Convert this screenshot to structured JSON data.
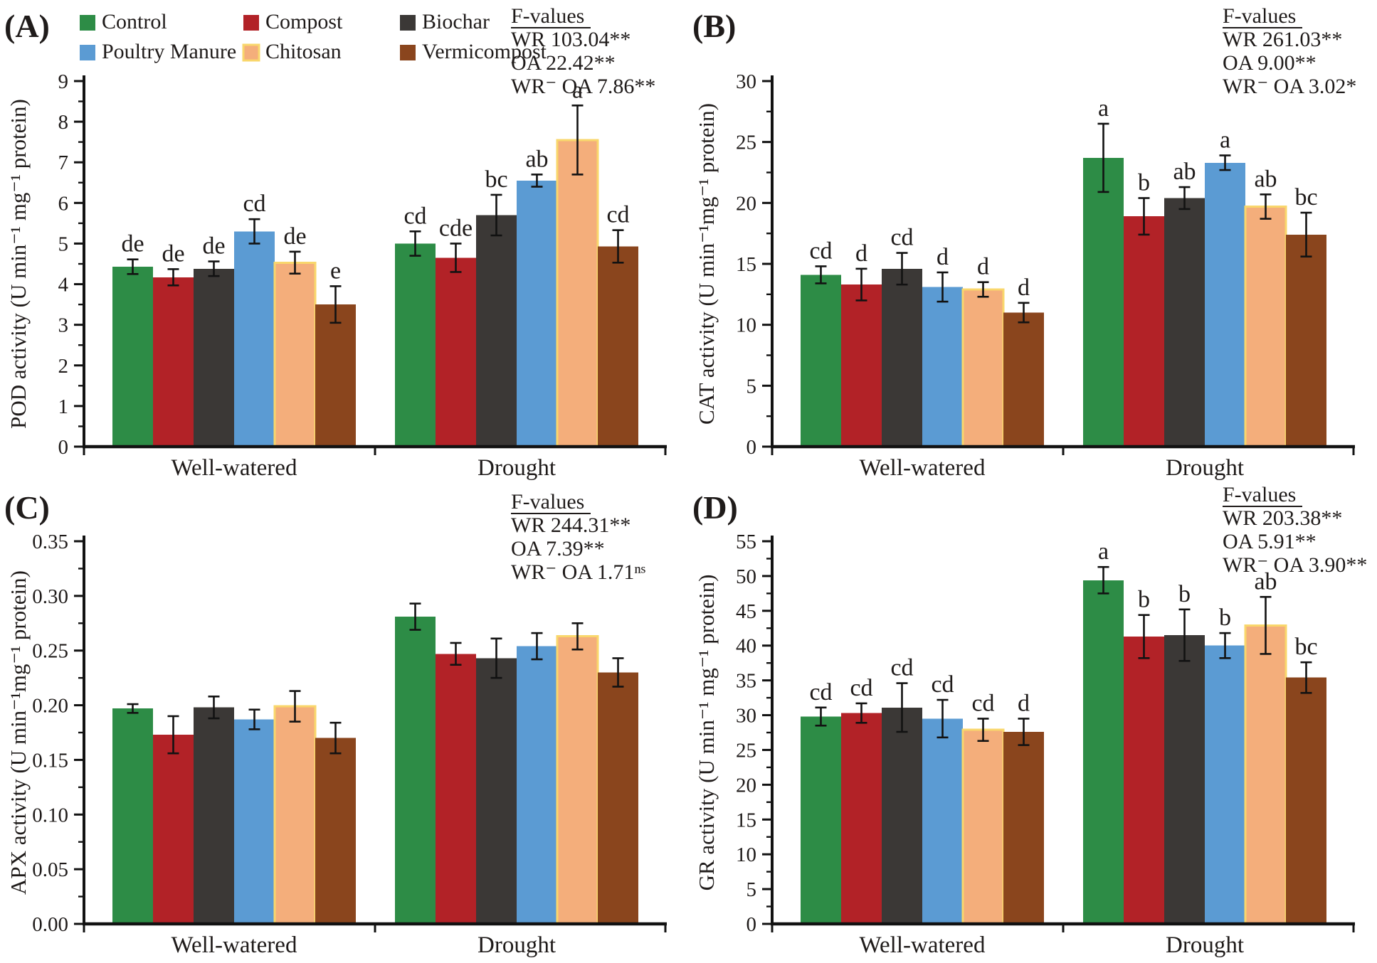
{
  "figure": {
    "panels": [
      "(A)",
      "(B)",
      "(C)",
      "(D)"
    ],
    "legend": [
      {
        "label": "Control",
        "color": "#2d8c46"
      },
      {
        "label": "Compost",
        "color": "#b22227"
      },
      {
        "label": "Biochar",
        "color": "#3b3836"
      },
      {
        "label": "Poultry Manure",
        "color": "#5b9bd3"
      },
      {
        "label": "Chitosan",
        "color": "#f4ae7b",
        "border": "#f9d76c"
      },
      {
        "label": "Vermicompost",
        "color": "#8a451d"
      }
    ],
    "groups": [
      "Well-watered",
      "Drought"
    ],
    "text_color": "#1f1b1a"
  },
  "chart_data": [
    {
      "type": "bar",
      "panel": "(A)",
      "ylabel": "POD activity (U min⁻¹ mg⁻¹ protein)",
      "ylim": [
        0,
        9
      ],
      "ytick_step": 1,
      "ytick_decimals": 0,
      "grid": false,
      "legend_position": "top-left",
      "categories": [
        "Well-watered",
        "Drought"
      ],
      "series": [
        {
          "name": "Control",
          "values": [
            4.43,
            5.0
          ],
          "errors": [
            0.18,
            0.3
          ],
          "letters": [
            "de",
            "cd"
          ]
        },
        {
          "name": "Compost",
          "values": [
            4.17,
            4.65
          ],
          "errors": [
            0.2,
            0.35
          ],
          "letters": [
            "de",
            "cde"
          ]
        },
        {
          "name": "Biochar",
          "values": [
            4.38,
            5.7
          ],
          "errors": [
            0.18,
            0.5
          ],
          "letters": [
            "de",
            "bc"
          ]
        },
        {
          "name": "Poultry Manure",
          "values": [
            5.3,
            6.55
          ],
          "errors": [
            0.3,
            0.15
          ],
          "letters": [
            "cd",
            "ab"
          ]
        },
        {
          "name": "Chitosan",
          "values": [
            4.53,
            7.55
          ],
          "errors": [
            0.27,
            0.85
          ],
          "letters": [
            "de",
            "a"
          ]
        },
        {
          "name": "Vermicompost",
          "values": [
            3.5,
            4.93
          ],
          "errors": [
            0.45,
            0.4
          ],
          "letters": [
            "e",
            "cd"
          ]
        }
      ],
      "f_values": {
        "title": "F-values",
        "lines": [
          "WR 103.04**",
          "OA 22.42**",
          "WR⁻ OA 7.86**"
        ]
      }
    },
    {
      "type": "bar",
      "panel": "(B)",
      "ylabel": "CAT  activity (U min⁻¹mg⁻¹ protein)",
      "ylim": [
        0,
        30
      ],
      "ytick_step": 5,
      "ytick_decimals": 0,
      "grid": false,
      "categories": [
        "Well-watered",
        "Drought"
      ],
      "series": [
        {
          "name": "Control",
          "values": [
            14.1,
            23.7
          ],
          "errors": [
            0.7,
            2.8
          ],
          "letters": [
            "cd",
            "a"
          ]
        },
        {
          "name": "Compost",
          "values": [
            13.3,
            18.9
          ],
          "errors": [
            1.3,
            1.5
          ],
          "letters": [
            "d",
            "b"
          ]
        },
        {
          "name": "Biochar",
          "values": [
            14.6,
            20.4
          ],
          "errors": [
            1.3,
            0.9
          ],
          "letters": [
            "cd",
            "ab"
          ]
        },
        {
          "name": "Poultry Manure",
          "values": [
            13.1,
            23.3
          ],
          "errors": [
            1.2,
            0.6
          ],
          "letters": [
            "d",
            "a"
          ]
        },
        {
          "name": "Chitosan",
          "values": [
            12.9,
            19.7
          ],
          "errors": [
            0.6,
            1.0
          ],
          "letters": [
            "d",
            "ab"
          ]
        },
        {
          "name": "Vermicompost",
          "values": [
            11.0,
            17.4
          ],
          "errors": [
            0.8,
            1.8
          ],
          "letters": [
            "d",
            "bc"
          ]
        }
      ],
      "f_values": {
        "title": "F-values",
        "lines": [
          "WR 261.03**",
          "OA 9.00**",
          "WR⁻ OA 3.02*"
        ]
      }
    },
    {
      "type": "bar",
      "panel": "(C)",
      "ylabel": "APX  activity (U min⁻¹mg⁻¹ protein)",
      "ylim": [
        0,
        0.35
      ],
      "ytick_step": 0.05,
      "ytick_decimals": 2,
      "grid": false,
      "categories": [
        "Well-watered",
        "Drought"
      ],
      "series": [
        {
          "name": "Control",
          "values": [
            0.197,
            0.281
          ],
          "errors": [
            0.004,
            0.012
          ],
          "letters": [
            "",
            ""
          ]
        },
        {
          "name": "Compost",
          "values": [
            0.173,
            0.247
          ],
          "errors": [
            0.017,
            0.01
          ],
          "letters": [
            "",
            ""
          ]
        },
        {
          "name": "Biochar",
          "values": [
            0.198,
            0.243
          ],
          "errors": [
            0.01,
            0.018
          ],
          "letters": [
            "",
            ""
          ]
        },
        {
          "name": "Poultry Manure",
          "values": [
            0.187,
            0.254
          ],
          "errors": [
            0.009,
            0.012
          ],
          "letters": [
            "",
            ""
          ]
        },
        {
          "name": "Chitosan",
          "values": [
            0.199,
            0.263
          ],
          "errors": [
            0.014,
            0.012
          ],
          "letters": [
            "",
            ""
          ]
        },
        {
          "name": "Vermicompost",
          "values": [
            0.17,
            0.23
          ],
          "errors": [
            0.014,
            0.013
          ],
          "letters": [
            "",
            ""
          ]
        }
      ],
      "f_values": {
        "title": "F-values",
        "lines": [
          "WR 244.31**",
          "OA 7.39**",
          "WR⁻ OA 1.71ⁿˢ"
        ]
      }
    },
    {
      "type": "bar",
      "panel": "(D)",
      "ylabel": "GR activity (U min⁻¹ mg⁻¹ protein)",
      "ylim": [
        0,
        55
      ],
      "ytick_step": 5,
      "ytick_decimals": 0,
      "grid": false,
      "categories": [
        "Well-watered",
        "Drought"
      ],
      "series": [
        {
          "name": "Control",
          "values": [
            29.8,
            49.4
          ],
          "errors": [
            1.3,
            1.9
          ],
          "letters": [
            "cd",
            "a"
          ]
        },
        {
          "name": "Compost",
          "values": [
            30.3,
            41.3
          ],
          "errors": [
            1.4,
            3.1
          ],
          "letters": [
            "cd",
            "b"
          ]
        },
        {
          "name": "Biochar",
          "values": [
            31.1,
            41.5
          ],
          "errors": [
            3.5,
            3.7
          ],
          "letters": [
            "cd",
            "b"
          ]
        },
        {
          "name": "Poultry Manure",
          "values": [
            29.5,
            40.0
          ],
          "errors": [
            2.7,
            1.8
          ],
          "letters": [
            "cd",
            "b"
          ]
        },
        {
          "name": "Chitosan",
          "values": [
            27.9,
            42.9
          ],
          "errors": [
            1.6,
            4.1
          ],
          "letters": [
            "cd",
            "ab"
          ]
        },
        {
          "name": "Vermicompost",
          "values": [
            27.6,
            35.4
          ],
          "errors": [
            1.9,
            2.2
          ],
          "letters": [
            "d",
            "bc"
          ]
        }
      ],
      "f_values": {
        "title": "F-values",
        "lines": [
          "WR 203.38**",
          "OA 5.91**",
          "WR⁻ OA 3.90**"
        ]
      }
    }
  ]
}
